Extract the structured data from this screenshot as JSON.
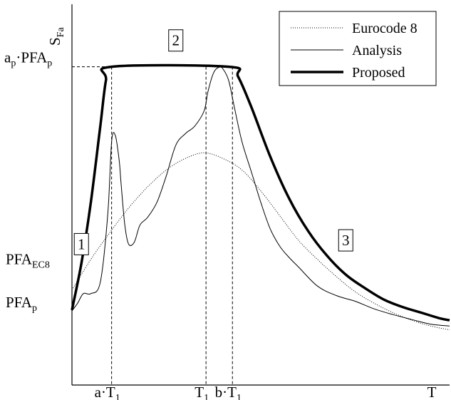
{
  "chart_data": {
    "type": "line",
    "title": "",
    "xlabel": "T",
    "ylabel": {
      "main": "S",
      "sub": "Fa"
    },
    "xlim": [
      0,
      2.0
    ],
    "ylim": [
      0,
      1.0
    ],
    "grid": false,
    "legend_position": "top-right",
    "legend": [
      {
        "label": "Eurocode 8",
        "style": "dotted",
        "key": "ec8"
      },
      {
        "label": "Analysis",
        "style": "thin",
        "key": "analysis"
      },
      {
        "label": "Proposed",
        "style": "thick",
        "key": "proposed"
      }
    ],
    "x_ticks": [
      {
        "x": 0.21,
        "main": "a·T",
        "sub": "1"
      },
      {
        "x": 0.71,
        "main": "T",
        "sub": "1"
      },
      {
        "x": 0.85,
        "main": "b·T",
        "sub": "1"
      }
    ],
    "y_levels": [
      {
        "y": 0.836,
        "main": "a",
        "mid": "p",
        "main2": "·PFA",
        "sub": "p"
      },
      {
        "y": 0.31,
        "main": "PFA",
        "sub": "EC8"
      },
      {
        "y": 0.197,
        "main": "PFA",
        "sub": "p"
      }
    ],
    "region_labels": [
      {
        "text": "1",
        "x": 0.05,
        "y": 0.37
      },
      {
        "text": "2",
        "x": 0.55,
        "y": 0.905
      },
      {
        "text": "3",
        "x": 1.45,
        "y": 0.38
      }
    ],
    "series": [
      {
        "key": "ec8",
        "x": [
          0.0,
          0.1,
          0.2,
          0.3,
          0.4,
          0.5,
          0.6,
          0.7,
          0.8,
          0.9,
          1.0,
          1.1,
          1.2,
          1.3,
          1.4,
          1.5,
          1.6,
          1.7,
          1.8,
          1.9,
          2.0
        ],
        "y": [
          0.25,
          0.33,
          0.4,
          0.465,
          0.52,
          0.565,
          0.595,
          0.61,
          0.595,
          0.565,
          0.51,
          0.445,
          0.38,
          0.33,
          0.285,
          0.245,
          0.215,
          0.19,
          0.17,
          0.155,
          0.145
        ]
      },
      {
        "key": "analysis",
        "x": [
          0.0,
          0.03,
          0.06,
          0.1,
          0.15,
          0.19,
          0.21,
          0.23,
          0.25,
          0.26,
          0.28,
          0.3,
          0.33,
          0.36,
          0.4,
          0.45,
          0.5,
          0.55,
          0.6,
          0.65,
          0.7,
          0.72,
          0.75,
          0.78,
          0.8,
          0.83,
          0.86,
          0.9,
          0.95,
          1.0,
          1.05,
          1.1,
          1.15,
          1.2,
          1.3,
          1.4,
          1.5,
          1.6,
          1.7,
          1.8,
          1.9,
          2.0
        ],
        "y": [
          0.195,
          0.215,
          0.24,
          0.24,
          0.27,
          0.45,
          0.64,
          0.655,
          0.59,
          0.53,
          0.42,
          0.37,
          0.375,
          0.42,
          0.44,
          0.48,
          0.55,
          0.63,
          0.66,
          0.68,
          0.72,
          0.77,
          0.82,
          0.835,
          0.83,
          0.8,
          0.73,
          0.64,
          0.56,
          0.48,
          0.41,
          0.365,
          0.335,
          0.31,
          0.26,
          0.235,
          0.22,
          0.2,
          0.185,
          0.172,
          0.16,
          0.155
        ]
      },
      {
        "key": "proposed",
        "x": [
          0.0,
          0.05,
          0.1,
          0.15,
          0.18,
          0.21,
          0.83,
          0.88,
          0.95,
          1.05,
          1.15,
          1.25,
          1.35,
          1.45,
          1.55,
          1.65,
          1.75,
          1.85,
          1.95,
          2.0
        ],
        "y": [
          0.197,
          0.32,
          0.48,
          0.68,
          0.8,
          0.836,
          0.836,
          0.81,
          0.73,
          0.6,
          0.49,
          0.405,
          0.34,
          0.29,
          0.255,
          0.225,
          0.205,
          0.19,
          0.175,
          0.17
        ]
      }
    ]
  }
}
